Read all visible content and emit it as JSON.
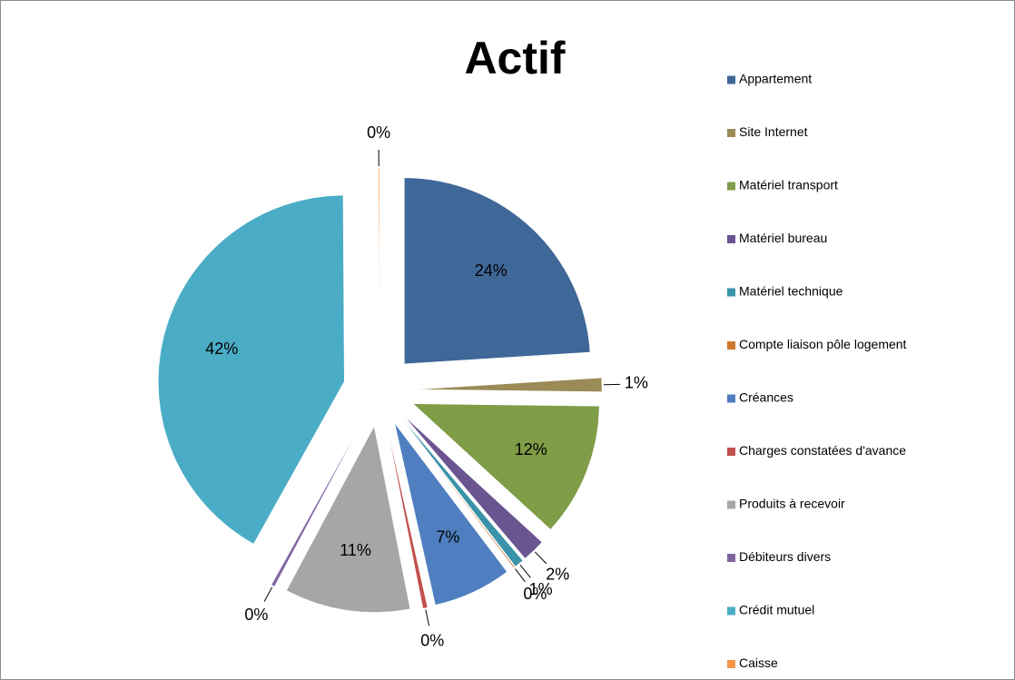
{
  "chart_data": {
    "type": "pie",
    "title": "Actif",
    "categories": [
      "Appartement",
      "Site Internet",
      "Matériel transport",
      "Matériel bureau",
      "Matériel technique",
      "Compte liaison pôle logement",
      "Créances",
      "Charges constatées d'avance",
      "Produits à recevoir",
      "Débiteurs divers",
      "Crédit mutuel",
      "Caisse"
    ],
    "values": [
      24.0,
      1.2,
      11.6,
      2.0,
      0.8,
      0.1,
      6.8,
      0.4,
      10.9,
      0.3,
      41.8,
      0.1
    ],
    "value_labels": [
      "24%",
      "1%",
      "12%",
      "2%",
      "1%",
      "0%",
      "7%",
      "0%",
      "11%",
      "0%",
      "42%",
      "0%"
    ],
    "colors": [
      "#3f6899",
      "#9a8b57",
      "#7f9c47",
      "#6a5591",
      "#3a93a8",
      "#d0772e",
      "#4f7fc0",
      "#c0504d",
      "#a6a6a6",
      "#8064a2",
      "#4bacc6",
      "#f79646"
    ],
    "legend": "right"
  }
}
